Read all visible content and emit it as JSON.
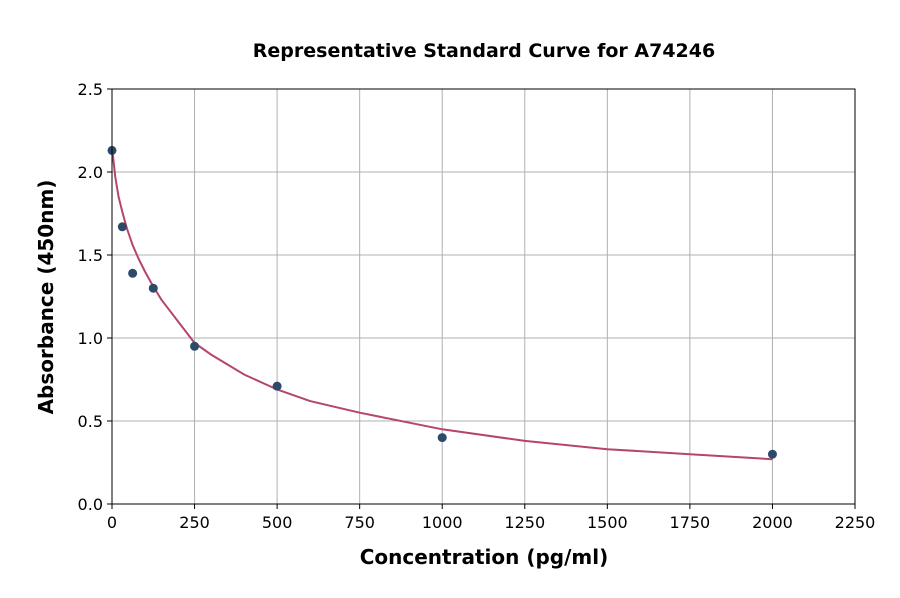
{
  "chart_data": {
    "type": "scatter",
    "title": "Representative Standard Curve for A74246",
    "xlabel": "Concentration (pg/ml)",
    "ylabel": "Absorbance (450nm)",
    "xlim": [
      0,
      2250
    ],
    "ylim": [
      0,
      2.5
    ],
    "xticks": [
      "0",
      "250",
      "500",
      "750",
      "1000",
      "1250",
      "1500",
      "1750",
      "2000",
      "2250"
    ],
    "yticks": [
      "0.0",
      "0.5",
      "1.0",
      "1.5",
      "2.0",
      "2.5"
    ],
    "grid": true,
    "points": {
      "x": [
        0,
        31.25,
        62.5,
        125,
        250,
        500,
        1000,
        2000
      ],
      "y": [
        2.13,
        1.67,
        1.39,
        1.3,
        0.95,
        0.71,
        0.4,
        0.3
      ]
    },
    "fit_curve": {
      "x": [
        0,
        10,
        20,
        31.25,
        45,
        62.5,
        80,
        100,
        125,
        150,
        200,
        250,
        300,
        400,
        500,
        600,
        750,
        1000,
        1250,
        1500,
        1750,
        2000
      ],
      "y": [
        2.15,
        1.97,
        1.85,
        1.76,
        1.66,
        1.56,
        1.48,
        1.4,
        1.31,
        1.23,
        1.1,
        0.97,
        0.9,
        0.78,
        0.69,
        0.62,
        0.55,
        0.45,
        0.38,
        0.33,
        0.3,
        0.27
      ]
    },
    "colors": {
      "points": "#2e4a6b",
      "curve": "#b5456b",
      "grid": "#b0b0b0"
    }
  }
}
